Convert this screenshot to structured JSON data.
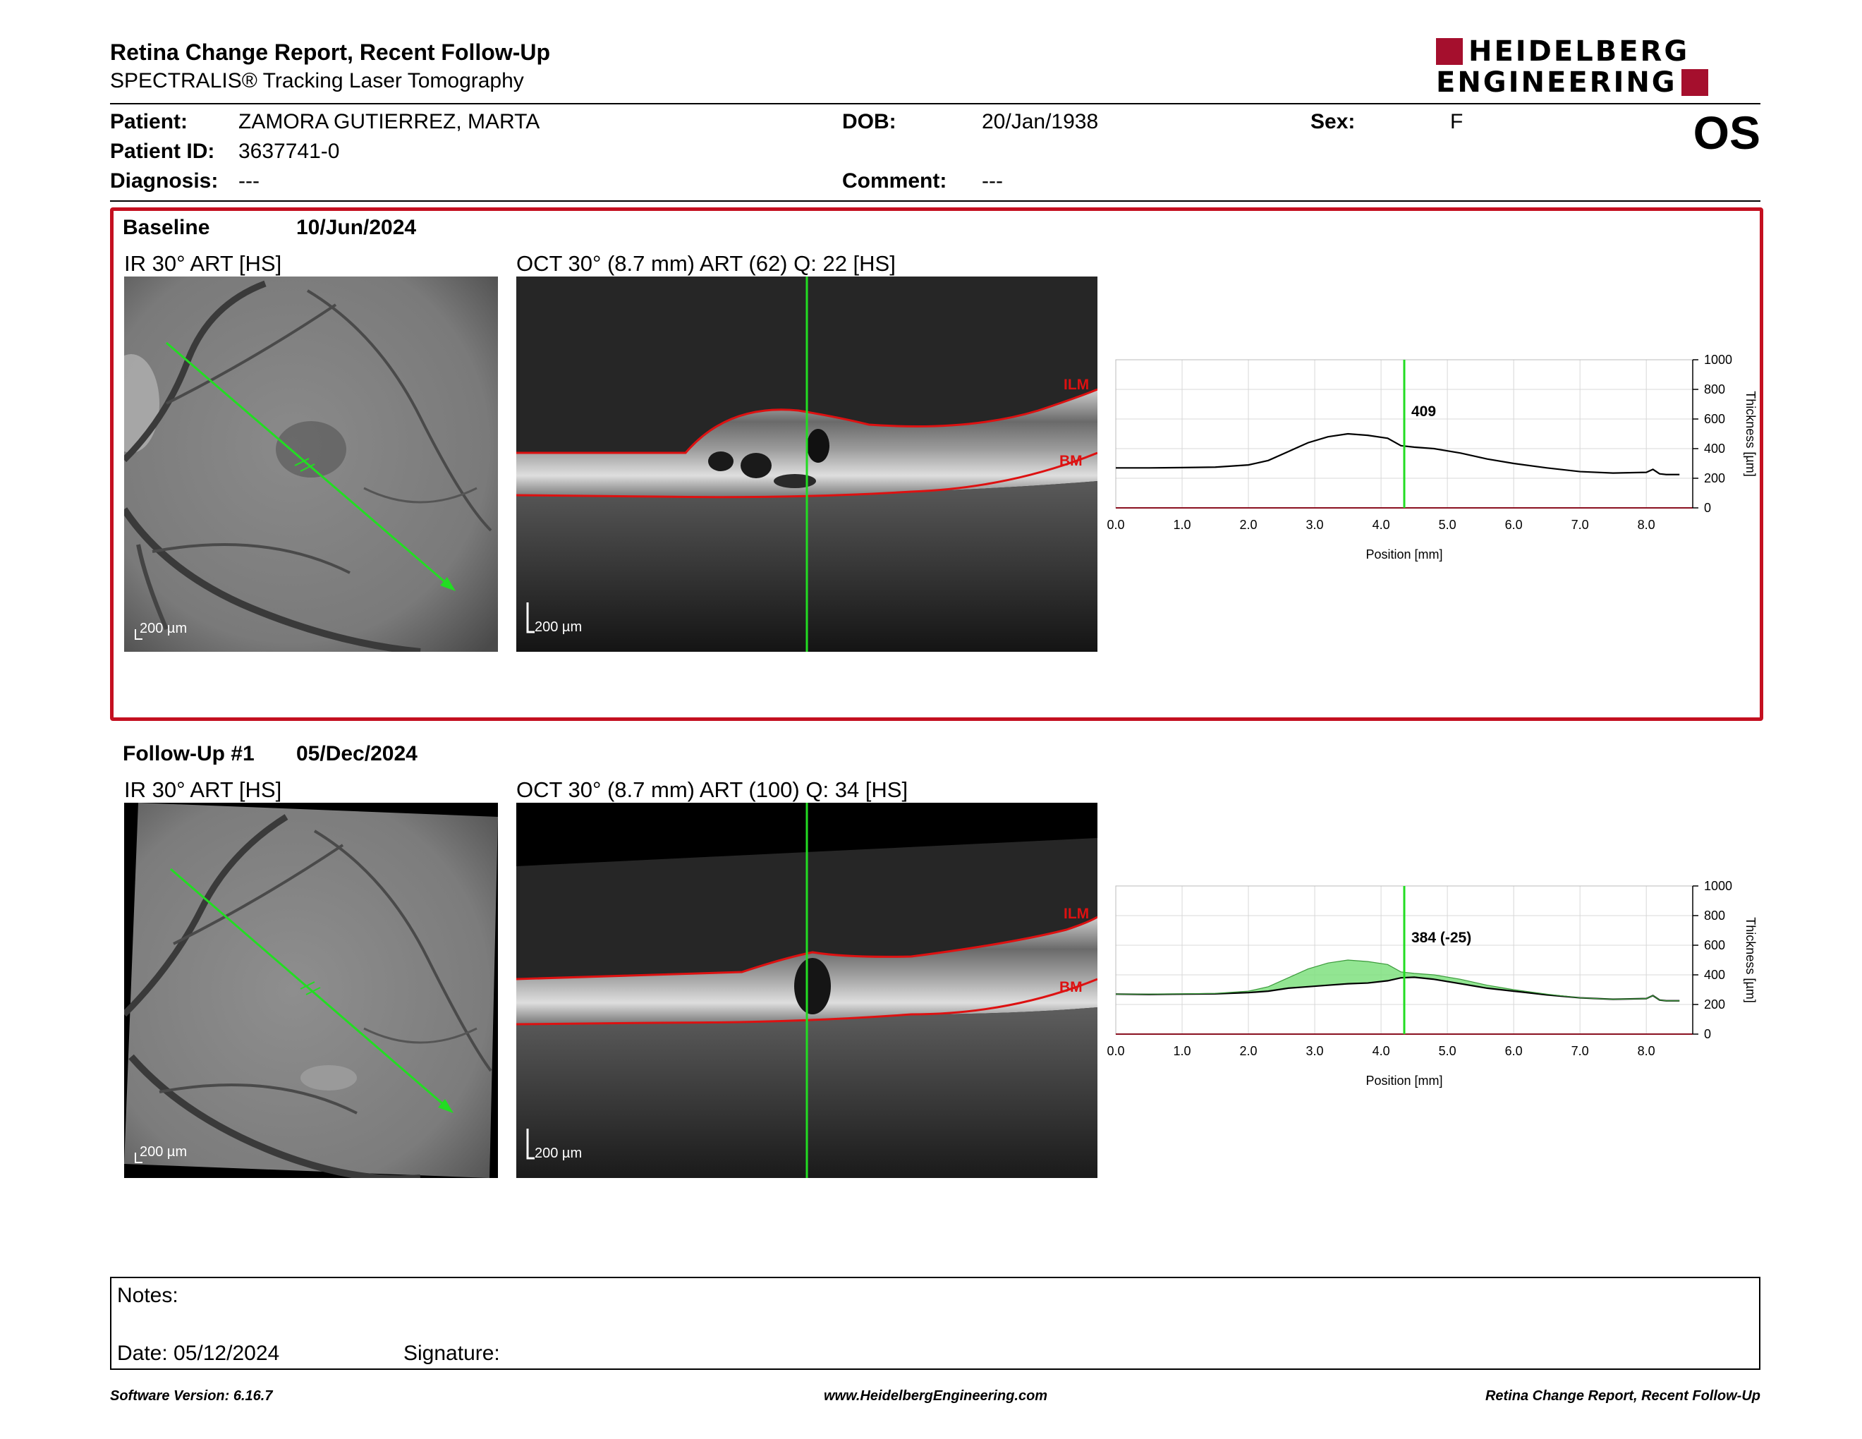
{
  "header": {
    "title": "Retina Change Report, Recent Follow-Up",
    "subtitle": "SPECTRALIS® Tracking Laser Tomography",
    "logo_line1": "HEIDELBERG",
    "logo_line2": "ENGINEERING",
    "eye": "OS"
  },
  "patient": {
    "patient_label": "Patient:",
    "patient_value": "ZAMORA GUTIERREZ, MARTA",
    "dob_label": "DOB:",
    "dob_value": "20/Jan/1938",
    "sex_label": "Sex:",
    "sex_value": "F",
    "id_label": "Patient ID:",
    "id_value": "3637741-0",
    "diagnosis_label": "Diagnosis:",
    "diagnosis_value": "---",
    "comment_label": "Comment:",
    "comment_value": "---"
  },
  "baseline": {
    "label": "Baseline",
    "date": "10/Jun/2024",
    "ir_caption": "IR 30° ART [HS]",
    "oct_caption": "OCT 30° (8.7 mm) ART (62) Q: 22 [HS]",
    "scale_label": "200 µm",
    "ilm_label": "ILM",
    "bm_label": "BM"
  },
  "followup": {
    "label": "Follow-Up #1",
    "date": "05/Dec/2024",
    "ir_caption": "IR 30° ART [HS]",
    "oct_caption": "OCT 30° (8.7 mm) ART (100) Q: 34 [HS]",
    "scale_label": "200 µm",
    "ilm_label": "ILM",
    "bm_label": "BM"
  },
  "chart_data": [
    {
      "type": "line",
      "xlabel": "Position [mm]",
      "ylabel": "Thickness [µm]",
      "xlim": [
        0,
        8.7
      ],
      "ylim": [
        0,
        1000
      ],
      "xticks": [
        "0.0",
        "1.0",
        "2.0",
        "3.0",
        "4.0",
        "5.0",
        "6.0",
        "7.0",
        "8.0"
      ],
      "yticks": [
        "0",
        "200",
        "400",
        "600",
        "800",
        "1000"
      ],
      "grid": true,
      "cursor_x": 4.35,
      "cursor_label": "409",
      "series": [
        {
          "x": [
            0,
            0.5,
            1.0,
            1.5,
            2.0,
            2.3,
            2.6,
            2.9,
            3.2,
            3.5,
            3.8,
            4.1,
            4.3,
            4.5,
            4.8,
            5.2,
            5.6,
            6.0,
            6.5,
            7.0,
            7.5,
            8.0,
            8.1,
            8.2,
            8.3,
            8.5
          ],
          "y": [
            270,
            270,
            272,
            275,
            290,
            320,
            380,
            440,
            480,
            500,
            490,
            470,
            420,
            410,
            400,
            370,
            330,
            300,
            270,
            245,
            235,
            240,
            260,
            230,
            225,
            225
          ]
        }
      ]
    },
    {
      "type": "line",
      "xlabel": "Position [mm]",
      "ylabel": "Thickness [µm]",
      "xlim": [
        0,
        8.7
      ],
      "ylim": [
        0,
        1000
      ],
      "xticks": [
        "0.0",
        "1.0",
        "2.0",
        "3.0",
        "4.0",
        "5.0",
        "6.0",
        "7.0",
        "8.0"
      ],
      "yticks": [
        "0",
        "200",
        "400",
        "600",
        "800",
        "1000"
      ],
      "grid": true,
      "cursor_x": 4.35,
      "cursor_label": "384 (-25)",
      "series": [
        {
          "x": [
            0,
            0.5,
            1.0,
            1.5,
            2.0,
            2.3,
            2.6,
            2.9,
            3.2,
            3.5,
            3.8,
            4.1,
            4.3,
            4.5,
            4.8,
            5.2,
            5.6,
            6.0,
            6.5,
            7.0,
            7.5,
            8.0,
            8.1,
            8.2,
            8.3,
            8.5
          ],
          "y": [
            270,
            268,
            270,
            272,
            280,
            290,
            310,
            320,
            330,
            340,
            345,
            360,
            380,
            384,
            370,
            340,
            310,
            290,
            265,
            245,
            235,
            240,
            260,
            230,
            225,
            225
          ]
        },
        {
          "x": [
            0,
            0.5,
            1.0,
            1.5,
            2.0,
            2.3,
            2.6,
            2.9,
            3.2,
            3.5,
            3.8,
            4.1,
            4.3,
            4.5,
            4.8,
            5.2,
            5.6,
            6.0,
            6.5,
            7.0,
            7.5,
            8.0,
            8.1,
            8.2,
            8.3,
            8.5
          ],
          "y": [
            270,
            270,
            272,
            275,
            290,
            320,
            380,
            440,
            480,
            500,
            490,
            470,
            420,
            410,
            400,
            370,
            330,
            300,
            270,
            245,
            235,
            240,
            260,
            230,
            225,
            225
          ]
        }
      ],
      "fill_color": "#7fe07f"
    }
  ],
  "notes": {
    "notes_label": "Notes:",
    "date_label": "Date: 05/12/2024",
    "signature_label": "Signature:"
  },
  "footer": {
    "software": "Software Version: 6.16.7",
    "website": "www.HeidelbergEngineering.com",
    "report": "Retina Change Report, Recent Follow-Up"
  },
  "colors": {
    "accent_red": "#c41020",
    "scan_green": "#22dd22",
    "segment_red": "#dd1111"
  }
}
